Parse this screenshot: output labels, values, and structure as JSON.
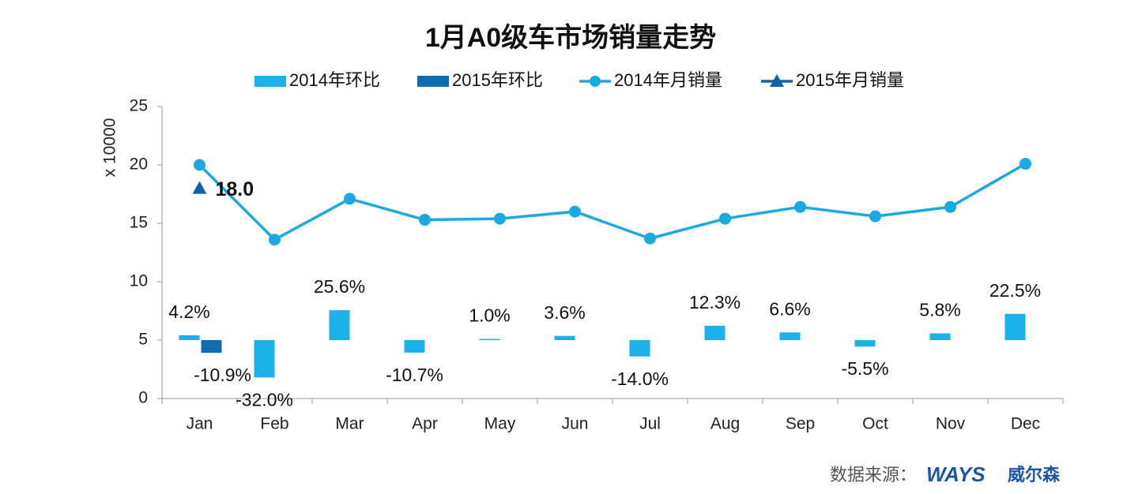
{
  "chart_data": {
    "type": "bar-line",
    "title": "1月A0级车市场销量走势",
    "y_axis_label": "x 10000",
    "categories": [
      "Jan",
      "Feb",
      "Mar",
      "Apr",
      "May",
      "Jun",
      "Jul",
      "Aug",
      "Sep",
      "Oct",
      "Nov",
      "Dec"
    ],
    "ylim": [
      0,
      25
    ],
    "yticks": [
      0,
      5,
      10,
      15,
      20,
      25
    ],
    "y2lim": [
      -50,
      200
    ],
    "series": [
      {
        "name": "2014年环比",
        "type": "bar",
        "axis": "y2",
        "color": "#1cb1e9",
        "values": [
          4.2,
          -32.0,
          25.6,
          -10.7,
          1.0,
          3.6,
          -14.0,
          12.3,
          6.6,
          -5.5,
          5.8,
          22.5
        ],
        "value_labels": [
          "4.2%",
          "-32.0%",
          "25.6%",
          "-10.7%",
          "1.0%",
          "3.6%",
          "-14.0%",
          "12.3%",
          "6.6%",
          "-5.5%",
          "5.8%",
          "22.5%"
        ]
      },
      {
        "name": "2015年环比",
        "type": "bar",
        "axis": "y2",
        "color": "#0e6cb4",
        "values": [
          -10.9,
          null,
          null,
          null,
          null,
          null,
          null,
          null,
          null,
          null,
          null,
          null
        ],
        "value_labels": [
          "-10.9%",
          null,
          null,
          null,
          null,
          null,
          null,
          null,
          null,
          null,
          null,
          null
        ]
      },
      {
        "name": "2014年月销量",
        "type": "line",
        "marker": "circle",
        "color": "#1ba9e2",
        "values": [
          20.0,
          13.6,
          17.1,
          15.3,
          15.4,
          16.0,
          13.7,
          15.4,
          16.4,
          15.6,
          16.4,
          20.1
        ]
      },
      {
        "name": "2015年月销量",
        "type": "line",
        "marker": "triangle",
        "color": "#1062aa",
        "values": [
          18.0,
          null,
          null,
          null,
          null,
          null,
          null,
          null,
          null,
          null,
          null,
          null
        ],
        "value_labels": [
          "18.0",
          null,
          null,
          null,
          null,
          null,
          null,
          null,
          null,
          null,
          null,
          null
        ]
      }
    ],
    "source_label": "数据来源：",
    "source_logo": "WAYS",
    "source_name": "威尔森"
  }
}
